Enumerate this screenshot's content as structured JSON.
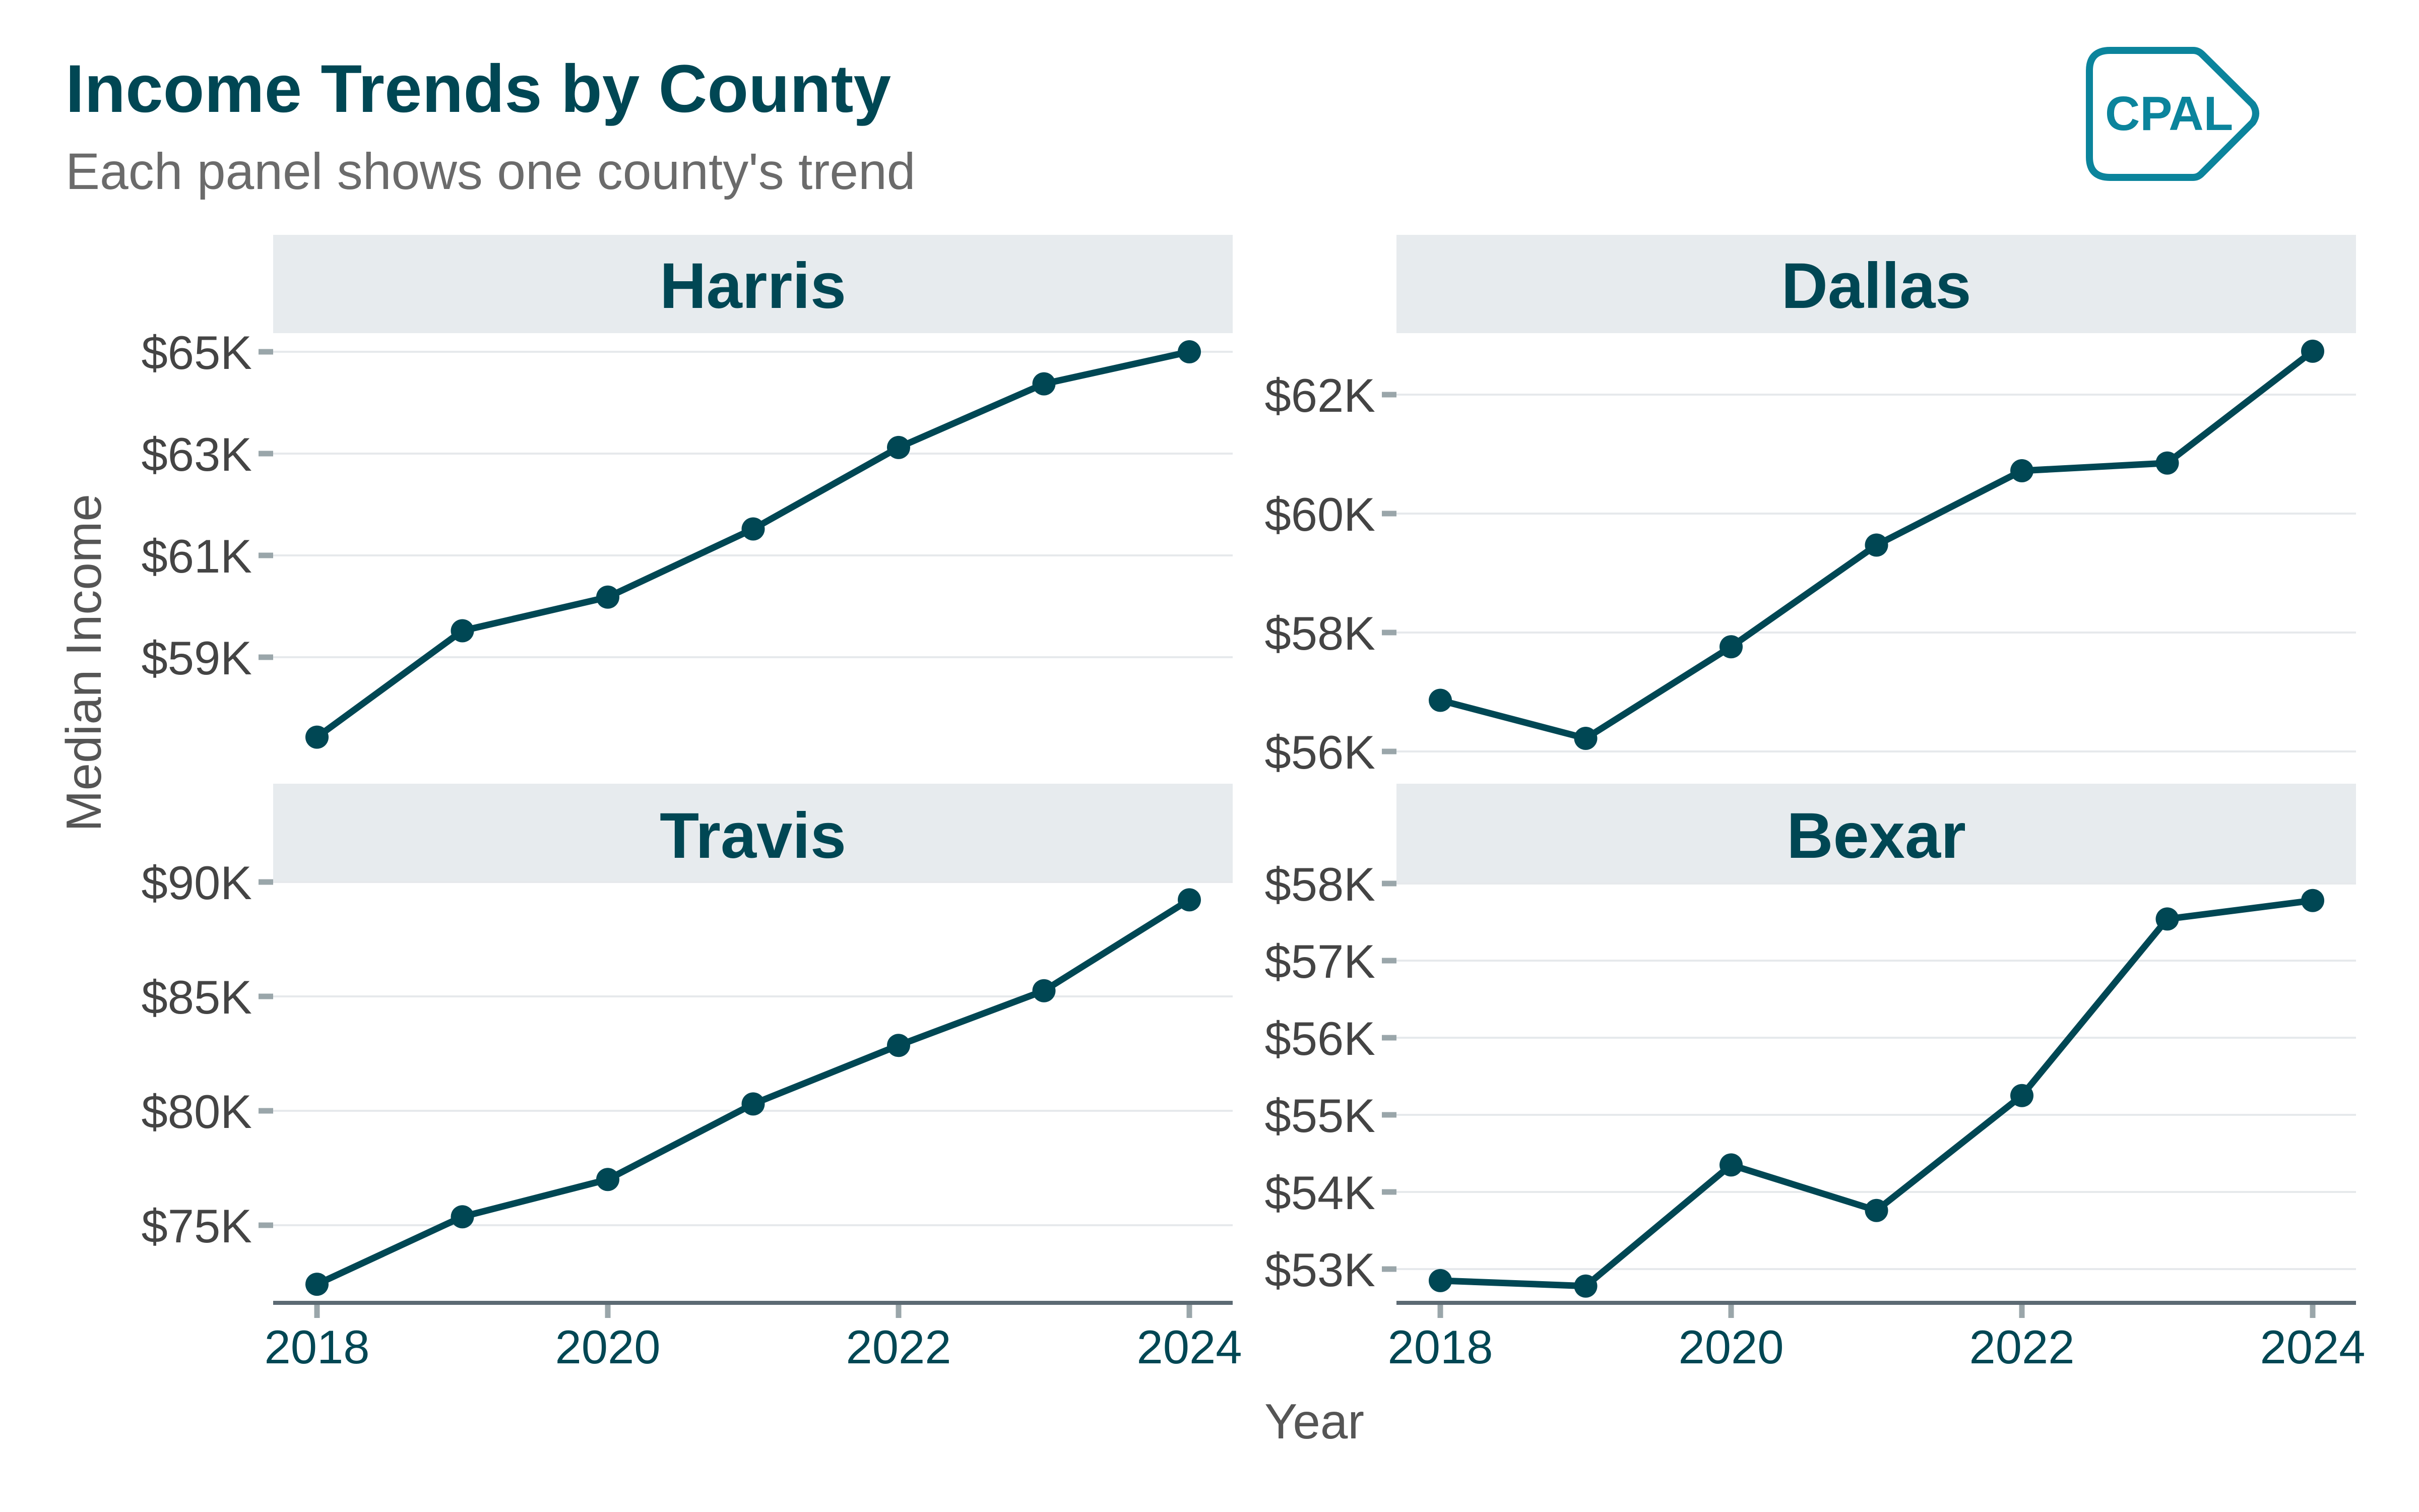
{
  "header": {
    "title": "Income Trends by County",
    "subtitle": "Each panel shows one county's trend",
    "logo_text": "CPAL"
  },
  "colors": {
    "title": "#004754",
    "series": "#004754",
    "strip_background": "#e7ebee",
    "logo": "#0b849c"
  },
  "chart_data": {
    "type": "line",
    "title": "Income Trends by County",
    "subtitle": "Each panel shows one county's trend",
    "xlabel": "Year",
    "ylabel": "Median Income",
    "x": [
      2018,
      2019,
      2020,
      2021,
      2022,
      2023,
      2024
    ],
    "x_ticks": [
      2018,
      2020,
      2022,
      2024
    ],
    "x_tick_labels": [
      "2018",
      "2020",
      "2022",
      "2024"
    ],
    "grid": true,
    "facets": [
      {
        "name": "Harris",
        "values": [
          57430,
          59520,
          60180,
          61520,
          63120,
          64370,
          65000
        ],
        "y_ticks": [
          59000,
          61000,
          63000,
          65000
        ],
        "y_tick_labels": [
          "$59K",
          "$61K",
          "$63K",
          "$65K"
        ]
      },
      {
        "name": "Dallas",
        "values": [
          56860,
          56220,
          57760,
          59470,
          60720,
          60850,
          62730
        ],
        "y_ticks": [
          56000,
          58000,
          60000,
          62000
        ],
        "y_tick_labels": [
          "$56K",
          "$58K",
          "$60K",
          "$62K"
        ]
      },
      {
        "name": "Travis",
        "values": [
          72420,
          75370,
          77000,
          80300,
          82860,
          85250,
          89220
        ],
        "y_ticks": [
          75000,
          80000,
          85000,
          90000
        ],
        "y_tick_labels": [
          "$75K",
          "$80K",
          "$85K",
          "$90K"
        ]
      },
      {
        "name": "Bexar",
        "values": [
          52850,
          52780,
          54350,
          53760,
          55250,
          57540,
          57780
        ],
        "y_ticks": [
          53000,
          54000,
          55000,
          56000,
          57000,
          58000
        ],
        "y_tick_labels": [
          "$53K",
          "$54K",
          "$55K",
          "$56K",
          "$57K",
          "$58K"
        ]
      }
    ]
  }
}
